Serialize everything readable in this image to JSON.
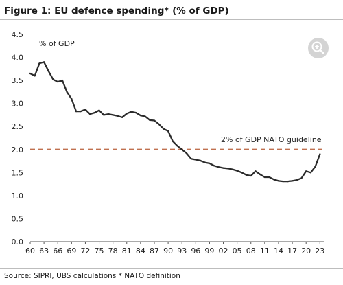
{
  "title": "Figure 1: EU defence spending* (% of GDP)",
  "footer": "Source: SIPRI, UBS calculations * NATO definition",
  "zoom_icon": "zoom-in-icon",
  "chart_data": {
    "type": "line",
    "title": "",
    "xlabel": "",
    "ylabel": "% of GDP",
    "xlim": [
      1960,
      2024
    ],
    "ylim": [
      0,
      4.5
    ],
    "grid": false,
    "x_ticks": [
      1960,
      1963,
      1966,
      1969,
      1972,
      1975,
      1978,
      1981,
      1984,
      1987,
      1990,
      1993,
      1996,
      1999,
      2002,
      2005,
      2008,
      2011,
      2014,
      2017,
      2020,
      2023
    ],
    "x_tick_labels": [
      "60",
      "63",
      "66",
      "69",
      "72",
      "75",
      "78",
      "81",
      "84",
      "87",
      "90",
      "93",
      "96",
      "99",
      "02",
      "05",
      "08",
      "11",
      "14",
      "17",
      "20",
      "23"
    ],
    "y_ticks": [
      0,
      0.5,
      1,
      1.5,
      2,
      2.5,
      3,
      3.5,
      4,
      4.5
    ],
    "y_tick_labels": [
      "0.0",
      "0.5",
      "1.0",
      "1.5",
      "2.0",
      "2.5",
      "3.0",
      "3.5",
      "4.0",
      "4.5"
    ],
    "series": [
      {
        "color": "#2b2b2b",
        "x": [
          1960,
          1961,
          1962,
          1963,
          1964,
          1965,
          1966,
          1967,
          1968,
          1969,
          1970,
          1971,
          1972,
          1973,
          1974,
          1975,
          1976,
          1977,
          1978,
          1979,
          1980,
          1981,
          1982,
          1983,
          1984,
          1985,
          1986,
          1987,
          1988,
          1989,
          1990,
          1991,
          1992,
          1993,
          1994,
          1995,
          1996,
          1997,
          1998,
          1999,
          2000,
          2001,
          2002,
          2003,
          2004,
          2005,
          2006,
          2007,
          2008,
          2009,
          2010,
          2011,
          2012,
          2013,
          2014,
          2015,
          2016,
          2017,
          2018,
          2019,
          2020,
          2021,
          2022,
          2023
        ],
        "y": [
          3.65,
          3.6,
          3.87,
          3.9,
          3.7,
          3.52,
          3.47,
          3.5,
          3.25,
          3.1,
          2.83,
          2.83,
          2.87,
          2.77,
          2.8,
          2.85,
          2.75,
          2.77,
          2.75,
          2.73,
          2.7,
          2.78,
          2.82,
          2.8,
          2.74,
          2.72,
          2.64,
          2.63,
          2.55,
          2.45,
          2.4,
          2.18,
          2.08,
          2.0,
          1.92,
          1.8,
          1.78,
          1.76,
          1.72,
          1.7,
          1.65,
          1.62,
          1.6,
          1.59,
          1.57,
          1.54,
          1.5,
          1.45,
          1.43,
          1.53,
          1.46,
          1.4,
          1.4,
          1.35,
          1.32,
          1.31,
          1.31,
          1.32,
          1.34,
          1.38,
          1.53,
          1.5,
          1.63,
          1.9
        ]
      }
    ],
    "reference_line": {
      "y": 2.0,
      "label": "2% of GDP NATO guideline",
      "color": "#c0704f"
    },
    "axis_unit_label": "% of GDP"
  }
}
